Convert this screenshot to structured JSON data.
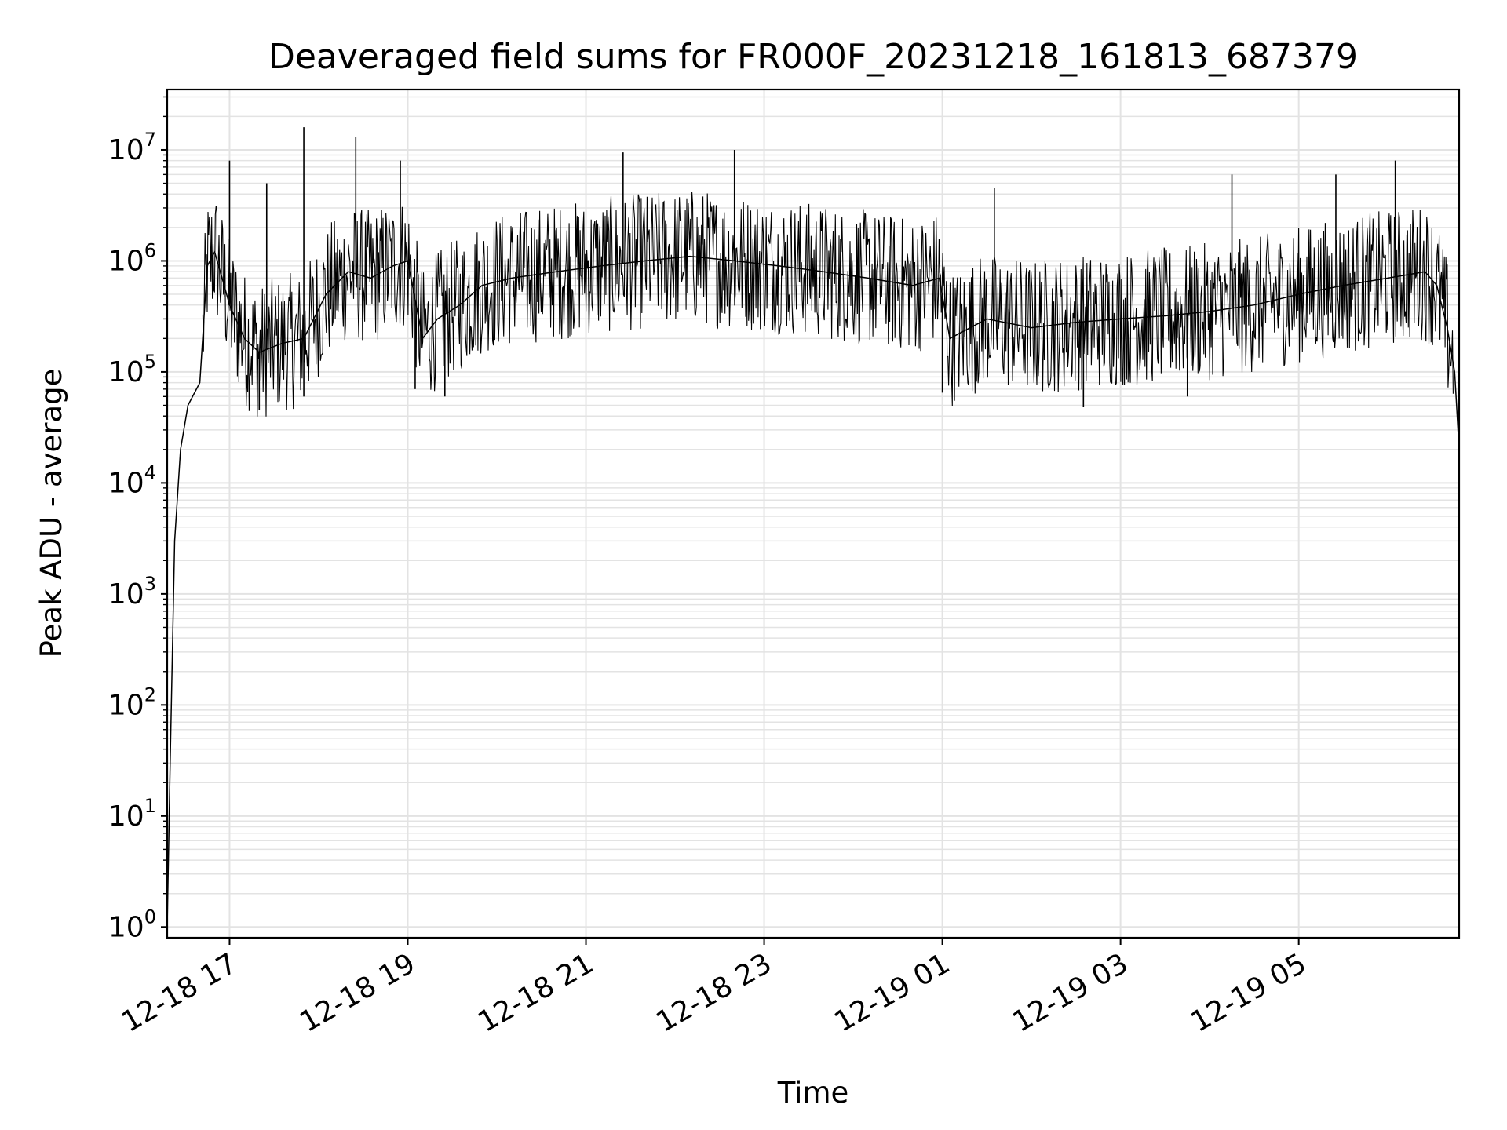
{
  "chart_data": {
    "type": "line",
    "title": "Deaveraged field sums for FR000F_20231218_161813_687379",
    "xlabel": "Time",
    "ylabel": "Peak ADU - average",
    "yscale": "log",
    "ylim": [
      0.8,
      35000000
    ],
    "xlim": [
      "2023-12-18 16:18",
      "2023-12-19 06:48"
    ],
    "grid": true,
    "x_ticks": [
      "12-18 17",
      "12-18 19",
      "12-18 21",
      "12-18 23",
      "12-19 01",
      "12-19 03",
      "12-19 05"
    ],
    "y_ticks": [
      {
        "base": "10",
        "exp": "0",
        "value": 1
      },
      {
        "base": "10",
        "exp": "1",
        "value": 10
      },
      {
        "base": "10",
        "exp": "2",
        "value": 100
      },
      {
        "base": "10",
        "exp": "3",
        "value": 1000
      },
      {
        "base": "10",
        "exp": "4",
        "value": 10000
      },
      {
        "base": "10",
        "exp": "5",
        "value": 100000
      },
      {
        "base": "10",
        "exp": "6",
        "value": 1000000
      },
      {
        "base": "10",
        "exp": "7",
        "value": 10000000
      }
    ],
    "series": [
      {
        "color": "#000000",
        "x": [
          "2023-12-18 16:18",
          "2023-12-18 16:20",
          "2023-12-18 16:23",
          "2023-12-18 16:27",
          "2023-12-18 16:32",
          "2023-12-18 16:40",
          "2023-12-18 16:45",
          "2023-12-18 16:50",
          "2023-12-18 16:55",
          "2023-12-18 17:00",
          "2023-12-18 17:10",
          "2023-12-18 17:20",
          "2023-12-18 17:35",
          "2023-12-18 17:50",
          "2023-12-18 18:05",
          "2023-12-18 18:20",
          "2023-12-18 18:35",
          "2023-12-18 18:50",
          "2023-12-18 19:00",
          "2023-12-18 19:10",
          "2023-12-18 19:20",
          "2023-12-18 19:35",
          "2023-12-18 19:50",
          "2023-12-18 20:10",
          "2023-12-18 20:40",
          "2023-12-18 21:10",
          "2023-12-18 21:40",
          "2023-12-18 22:10",
          "2023-12-18 22:40",
          "2023-12-18 23:10",
          "2023-12-18 23:40",
          "2023-12-19 00:10",
          "2023-12-19 00:40",
          "2023-12-19 00:58",
          "2023-12-19 01:05",
          "2023-12-19 01:30",
          "2023-12-19 02:00",
          "2023-12-19 02:30",
          "2023-12-19 03:00",
          "2023-12-19 03:30",
          "2023-12-19 04:00",
          "2023-12-19 04:30",
          "2023-12-19 05:00",
          "2023-12-19 05:30",
          "2023-12-19 06:00",
          "2023-12-19 06:25",
          "2023-12-19 06:33",
          "2023-12-19 06:40",
          "2023-12-19 06:45",
          "2023-12-19 06:48"
        ],
        "y": [
          1,
          30,
          3000,
          20000,
          50000,
          80000,
          900000,
          1200000,
          700000,
          400000,
          200000,
          150000,
          180000,
          200000,
          500000,
          800000,
          700000,
          900000,
          1000000,
          200000,
          300000,
          400000,
          600000,
          700000,
          800000,
          900000,
          1000000,
          1100000,
          1000000,
          900000,
          800000,
          700000,
          600000,
          700000,
          200000,
          300000,
          250000,
          280000,
          300000,
          320000,
          350000,
          400000,
          500000,
          600000,
          700000,
          800000,
          600000,
          250000,
          100000,
          20000
        ]
      }
    ],
    "peaks": [
      {
        "x": "2023-12-18 17:00",
        "y": 8000000
      },
      {
        "x": "2023-12-18 17:25",
        "y": 5000000
      },
      {
        "x": "2023-12-18 17:50",
        "y": 16000000
      },
      {
        "x": "2023-12-18 18:25",
        "y": 13000000
      },
      {
        "x": "2023-12-18 18:55",
        "y": 8000000
      },
      {
        "x": "2023-12-18 21:25",
        "y": 9500000
      },
      {
        "x": "2023-12-18 22:40",
        "y": 10000000
      },
      {
        "x": "2023-12-19 01:35",
        "y": 4500000
      },
      {
        "x": "2023-12-19 04:15",
        "y": 6000000
      },
      {
        "x": "2023-12-19 05:25",
        "y": 6000000
      },
      {
        "x": "2023-12-19 06:05",
        "y": 8000000
      }
    ],
    "troughs": [
      {
        "x": "2023-12-18 17:20",
        "y": 45000
      },
      {
        "x": "2023-12-18 17:50",
        "y": 60000
      },
      {
        "x": "2023-12-18 19:05",
        "y": 70000
      },
      {
        "x": "2023-12-18 19:25",
        "y": 60000
      },
      {
        "x": "2023-12-19 01:00",
        "y": 65000
      },
      {
        "x": "2023-12-19 02:35",
        "y": 48000
      },
      {
        "x": "2023-12-19 03:45",
        "y": 60000
      }
    ]
  }
}
